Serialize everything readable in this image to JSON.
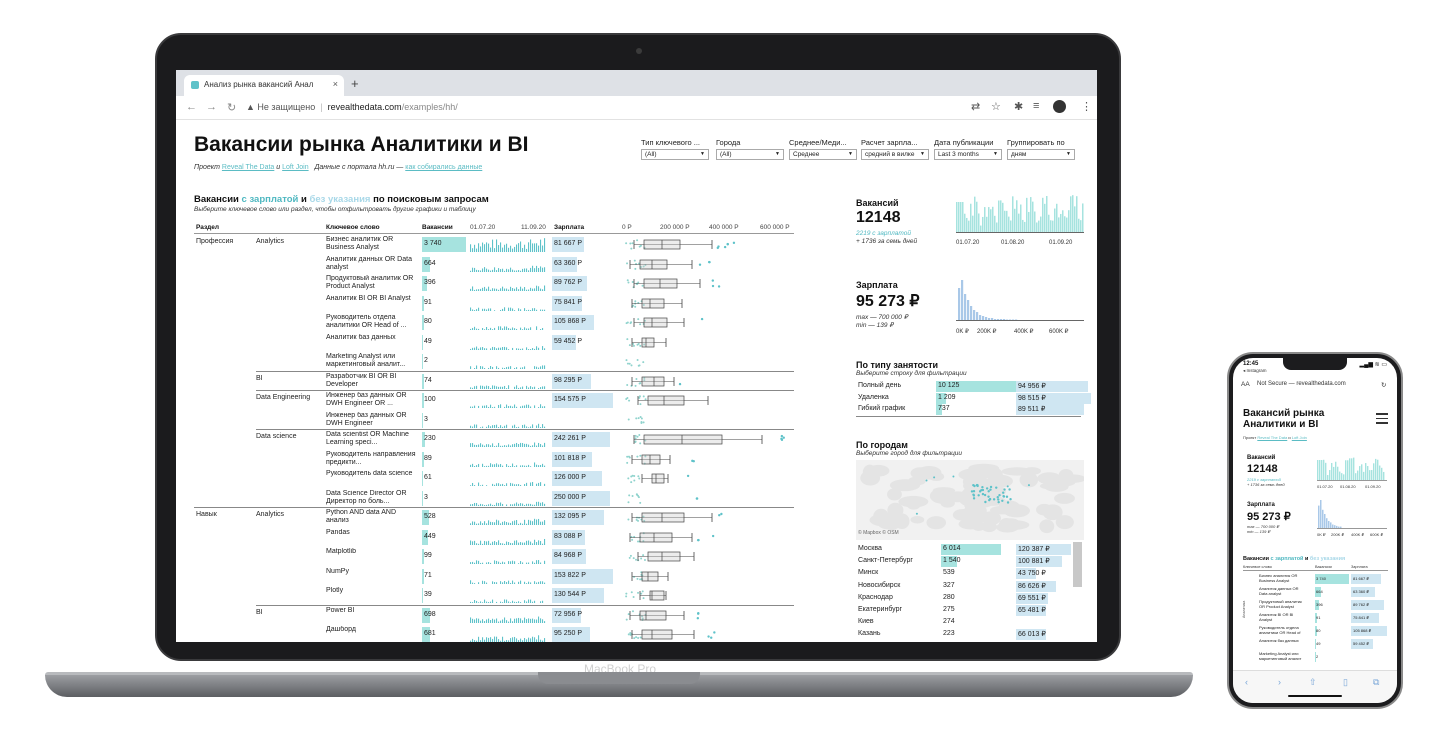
{
  "browser": {
    "tab_title": "Анализ рынка вакансий Анал",
    "tab_close": "×",
    "tab_new": "+",
    "url_warning": "▲ Не защищено",
    "url_host": "revealthedata.com",
    "url_path": "/examples/hh/",
    "device_label": "MacBook Pro"
  },
  "page": {
    "title": "Вакансии рынка Аналитики и BI",
    "sub_project": "Проект",
    "sub_link1": "Reveal The Data",
    "sub_and": "и",
    "sub_link2": "Loft Join",
    "sub_data": "Данные с портала hh.ru —",
    "sub_link3": "как собирались данные"
  },
  "filters": [
    {
      "label": "Тип ключевого ...",
      "value": "(All)"
    },
    {
      "label": "Города",
      "value": "(All)"
    },
    {
      "label": "Среднее/Меди...",
      "value": "Среднее"
    },
    {
      "label": "Расчет зарпла...",
      "value": "средний в вилке"
    },
    {
      "label": "Дата публикации",
      "value": "Last 3 months"
    },
    {
      "label": "Группировать по",
      "value": "дням"
    }
  ],
  "section": {
    "title_pre": "Вакансии",
    "title_c1": "с зарплатой",
    "title_mid": "и",
    "title_c2": "без указания",
    "title_post": "по поисковым запросам",
    "subtitle": "Выберите ключевое слово или раздел, чтобы отфильтровать другие графики и таблицу"
  },
  "table_head": {
    "section": "Раздел",
    "keyword": "Ключевое слово",
    "count": "Вакансии",
    "d1": "01.07.20",
    "d2": "11.09.20",
    "salary": "Зарплата",
    "s0": "0 Р",
    "s1": "200 000 Р",
    "s2": "400 000 Р",
    "s3": "600 000 Р"
  },
  "rows": [
    {
      "sec": "Профессия",
      "grp": "Analytics",
      "kw": "Бизнес аналитик OR Business Analyst",
      "cnt": "3 740",
      "cntw": 44,
      "sal": "81 667 Р",
      "salw": 32,
      "bx": [
        22,
        40,
        58,
        90
      ],
      "dots": 6
    },
    {
      "sec": "",
      "grp": "",
      "kw": "Аналитик данных OR Data analyst",
      "cnt": "664",
      "cntw": 8,
      "sal": "63 360 Р",
      "salw": 25,
      "bx": [
        18,
        30,
        45,
        70
      ],
      "dots": 3
    },
    {
      "sec": "",
      "grp": "",
      "kw": "Продуктовый аналитик OR Product Analyst",
      "cnt": "396",
      "cntw": 5,
      "sal": "89 762 Р",
      "salw": 35,
      "bx": [
        22,
        38,
        55,
        78
      ],
      "dots": 3
    },
    {
      "sec": "",
      "grp": "",
      "kw": "Аналитик BI OR BI Analyst",
      "cnt": "91",
      "cntw": 2,
      "sal": "75 841 Р",
      "salw": 30,
      "bx": [
        20,
        28,
        42,
        60
      ],
      "dots": 0
    },
    {
      "sec": "",
      "grp": "",
      "kw": "Руководитель отдела аналитики OR Head of ...",
      "cnt": "80",
      "cntw": 2,
      "sal": "105 868 Р",
      "salw": 42,
      "bx": [
        22,
        30,
        45,
        62
      ],
      "dots": 1
    },
    {
      "sec": "",
      "grp": "",
      "kw": "Аналитик баз данных",
      "cnt": "49",
      "cntw": 1,
      "sal": "59 452 Р",
      "salw": 24,
      "bx": [
        20,
        24,
        32,
        44
      ],
      "dots": 0
    },
    {
      "sec": "",
      "grp": "",
      "kw": "Marketing Analyst или маркетинговый аналит...",
      "cnt": "2",
      "cntw": 1,
      "sal": "",
      "salw": 0,
      "bx": null,
      "dots": 0
    },
    {
      "sec": "",
      "grp": "BI",
      "kw": "Разработчик BI OR BI Developer",
      "cnt": "74",
      "cntw": 2,
      "sal": "98 295 Р",
      "salw": 39,
      "bx": [
        20,
        32,
        42,
        52
      ],
      "dots": 1
    },
    {
      "sec": "",
      "grp": "Data Engineering",
      "kw": "Инженер баз данных OR DWH Engineer OR ...",
      "cnt": "100",
      "cntw": 2,
      "sal": "154 575 Р",
      "salw": 61,
      "bx": [
        26,
        42,
        62,
        86
      ],
      "dots": 0
    },
    {
      "sec": "",
      "grp": "",
      "kw": "Инженер баз данных OR DWH Engineer",
      "cnt": "3",
      "cntw": 1,
      "sal": "",
      "salw": 0,
      "bx": null,
      "dots": 0
    },
    {
      "sec": "",
      "grp": "Data science",
      "kw": "Data scientist OR Machine Learning speci...",
      "cnt": "230",
      "cntw": 3,
      "sal": "242 261 Р",
      "salw": 58,
      "bx": [
        22,
        60,
        100,
        140
      ],
      "dots": 4
    },
    {
      "sec": "",
      "grp": "",
      "kw": "Руководитель направления предикти...",
      "cnt": "89",
      "cntw": 2,
      "sal": "101 818 Р",
      "salw": 40,
      "bx": [
        20,
        28,
        38,
        48
      ],
      "dots": 2
    },
    {
      "sec": "",
      "grp": "",
      "kw": "Руководитель data science",
      "cnt": "61",
      "cntw": 1,
      "sal": "126 000 Р",
      "salw": 50,
      "bx": [
        30,
        34,
        42,
        46
      ],
      "dots": 1
    },
    {
      "sec": "",
      "grp": "",
      "kw": "Data Science Director OR Директор по боль...",
      "cnt": "3",
      "cntw": 1,
      "sal": "250 000 Р",
      "salw": 58,
      "bx": null,
      "dots": 1
    },
    {
      "sec": "Навык",
      "grp": "Analytics",
      "kw": "Python AND data AND анализ",
      "cnt": "528",
      "cntw": 7,
      "sal": "132 095 Р",
      "salw": 52,
      "bx": [
        20,
        40,
        62,
        90
      ],
      "dots": 2
    },
    {
      "sec": "",
      "grp": "",
      "kw": "Pandas",
      "cnt": "449",
      "cntw": 6,
      "sal": "83 088 Р",
      "salw": 33,
      "bx": [
        18,
        32,
        50,
        70
      ],
      "dots": 3
    },
    {
      "sec": "",
      "grp": "",
      "kw": "Matplotlib",
      "cnt": "99",
      "cntw": 2,
      "sal": "84 968 Р",
      "salw": 34,
      "bx": [
        26,
        40,
        58,
        72
      ],
      "dots": 0
    },
    {
      "sec": "",
      "grp": "",
      "kw": "NumPy",
      "cnt": "71",
      "cntw": 2,
      "sal": "153 822 Р",
      "salw": 61,
      "bx": [
        20,
        26,
        36,
        46
      ],
      "dots": 0
    },
    {
      "sec": "",
      "grp": "",
      "kw": "Plotly",
      "cnt": "39",
      "cntw": 1,
      "sal": "130 544 Р",
      "salw": 52,
      "bx": [
        28,
        30,
        42,
        44
      ],
      "dots": 0
    },
    {
      "sec": "",
      "grp": "BI",
      "kw": "Power BI",
      "cnt": "698",
      "cntw": 8,
      "sal": "72 956 Р",
      "salw": 29,
      "bx": [
        18,
        24,
        44,
        62
      ],
      "dots": 3
    },
    {
      "sec": "",
      "grp": "",
      "kw": "Дашборд",
      "cnt": "681",
      "cntw": 8,
      "sal": "95 250 Р",
      "salw": 38,
      "bx": [
        20,
        30,
        50,
        72
      ],
      "dots": 3
    }
  ],
  "kpi": {
    "vac_title": "Вакансий",
    "vac_value": "12148",
    "vac_sub1": "2219 с зарплатой",
    "vac_sub2": "+ 1736 за семь дней",
    "vac_ax": [
      "01.07.20",
      "01.08.20",
      "01.09.20"
    ],
    "sal_title": "Зарплата",
    "sal_value": "95 273 ₽",
    "sal_max": "max — 700 000 ₽",
    "sal_min": "min — 139 ₽",
    "sal_ax": [
      "0K ₽",
      "200K ₽",
      "400K ₽",
      "600K ₽"
    ]
  },
  "employment": {
    "title": "По типу занятости",
    "subtitle": "Выберите строку для фильтрации",
    "rows": [
      {
        "name": "Полный день",
        "cnt": "10 125",
        "cntw": 80,
        "sal": "94 956 ₽",
        "salw": 72
      },
      {
        "name": "Удаленка",
        "cnt": "1 209",
        "cntw": 10,
        "sal": "98 515 ₽",
        "salw": 75
      },
      {
        "name": "Гибкий график",
        "cnt": "737",
        "cntw": 6,
        "sal": "89 511 ₽",
        "salw": 68
      }
    ]
  },
  "cities": {
    "title": "По городам",
    "subtitle": "Выберите город для фильтрации",
    "map_credit": "© Mapbox © OSM",
    "rows": [
      {
        "name": "Москва",
        "cnt": "6 014",
        "cntw": 60,
        "sal": "120 387 ₽",
        "salw": 55
      },
      {
        "name": "Санкт-Петербург",
        "cnt": "1 540",
        "cntw": 16,
        "sal": "100 881 ₽",
        "salw": 46
      },
      {
        "name": "Минск",
        "cnt": "539",
        "cntw": 0,
        "sal": "43 750 ₽",
        "salw": 20
      },
      {
        "name": "Новосибирск",
        "cnt": "327",
        "cntw": 0,
        "sal": "86 626 ₽",
        "salw": 40
      },
      {
        "name": "Краснодар",
        "cnt": "280",
        "cntw": 0,
        "sal": "69 551 ₽",
        "salw": 32
      },
      {
        "name": "Екатеринбург",
        "cnt": "275",
        "cntw": 0,
        "sal": "65 481 ₽",
        "salw": 30
      },
      {
        "name": "Киев",
        "cnt": "274",
        "cntw": 0,
        "sal": "",
        "salw": 0
      },
      {
        "name": "Казань",
        "cnt": "223",
        "cntw": 0,
        "sal": "66 013 ₽",
        "salw": 30
      }
    ]
  },
  "iphone": {
    "time": "12:45",
    "back": "◂ Instagram",
    "status": "▂▄▆ ≋ ▭",
    "url_aa": "AA",
    "url_text": "Not Secure — revealthedata.com",
    "url_reload": "↻",
    "title": "Вакансий рынка Аналитики и BI",
    "sub": "Проект",
    "sub_l1": "Reveal The Data",
    "sub_and": "и",
    "sub_l2": "Loft Join",
    "vac_title": "Вакансий",
    "vac_value": "12148",
    "vac_sub1": "2219 с зарплатой",
    "vac_sub2": "+ 1736 за семь дней",
    "vac_ax": [
      "01.07.20",
      "01.08.20",
      "01.09.20"
    ],
    "sal_title": "Зарплата",
    "sal_value": "95 273 ₽",
    "sal_max": "max — 700 000 ₽",
    "sal_min": "min — 139 ₽",
    "sal_ax": [
      "0K ₽",
      "200K ₽",
      "400K ₽",
      "600K ₽"
    ],
    "sec_pre": "Вакансии",
    "sec_c1": "с зарплатой",
    "sec_mid": "и",
    "sec_c2": "без указания",
    "th_kw": "Ключевое слово",
    "th_cnt": "Вакансии",
    "th_sal": "Зарплата",
    "side_label": "Аналитика",
    "rows": [
      {
        "kw": "Бизнес аналитик OR Business Analyst",
        "cnt": "3 740",
        "cntw": 34,
        "sal": "81 667 ₽",
        "salw": 30
      },
      {
        "kw": "Аналитик данных OR Data analyst",
        "cnt": "664",
        "cntw": 6,
        "sal": "63 360 ₽",
        "salw": 24
      },
      {
        "kw": "Продуктовый аналитик OR Product Analyst",
        "cnt": "396",
        "cntw": 4,
        "sal": "89 762 ₽",
        "salw": 33
      },
      {
        "kw": "Аналитик BI OR BI Analyst",
        "cnt": "91",
        "cntw": 2,
        "sal": "75 841 ₽",
        "salw": 28
      },
      {
        "kw": "Руководитель отдела аналитики OR Head of",
        "cnt": "80",
        "cntw": 2,
        "sal": "105 868 ₽",
        "salw": 36
      },
      {
        "kw": "Аналитик баз данных",
        "cnt": "49",
        "cntw": 1,
        "sal": "59 452 ₽",
        "salw": 22
      },
      {
        "kw": "Marketing Analyst или маркетинговый аналит",
        "cnt": "2",
        "cntw": 1,
        "sal": "",
        "salw": 0
      }
    ]
  },
  "colors": {
    "teal": "#a6e3df",
    "blue": "#cfe6f2",
    "teal_dark": "#4fb8c1"
  }
}
